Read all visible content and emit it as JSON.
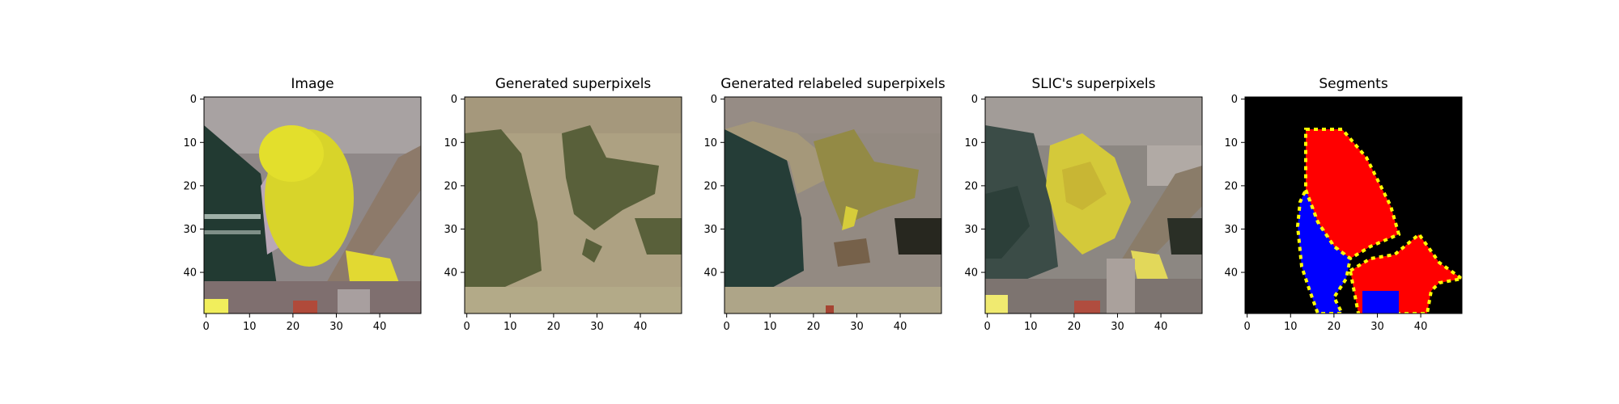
{
  "chart_data": [
    {
      "type": "image",
      "title": "Image",
      "xlim": [
        0,
        49
      ],
      "ylim": [
        0,
        49
      ],
      "x_ticks": [
        "0",
        "10",
        "20",
        "30",
        "40"
      ],
      "y_ticks": [
        "0",
        "10",
        "20",
        "30",
        "40"
      ],
      "content": "yellow parakeet perched on a branch, 50x50 pixel image"
    },
    {
      "type": "image",
      "title": "Generated superpixels",
      "xlim": [
        0,
        49
      ],
      "ylim": [
        0,
        49
      ],
      "x_ticks": [
        "0",
        "10",
        "20",
        "30",
        "40"
      ],
      "y_ticks": [
        "0",
        "10",
        "20",
        "30",
        "40"
      ],
      "content": "region map in olive and tan tones"
    },
    {
      "type": "image",
      "title": "Generated relabeled superpixels",
      "xlim": [
        0,
        49
      ],
      "ylim": [
        0,
        49
      ],
      "x_ticks": [
        "0",
        "10",
        "20",
        "30",
        "40"
      ],
      "y_ticks": [
        "0",
        "10",
        "20",
        "30",
        "40"
      ],
      "content": "region map colored with region mean colors"
    },
    {
      "type": "image",
      "title": "SLIC's superpixels",
      "xlim": [
        0,
        49
      ],
      "ylim": [
        0,
        49
      ],
      "x_ticks": [
        "0",
        "10",
        "20",
        "30",
        "40"
      ],
      "y_ticks": [
        "0",
        "10",
        "20",
        "30",
        "40"
      ],
      "content": "SLIC superpixels colored by mean color"
    },
    {
      "type": "image",
      "title": "Segments",
      "xlim": [
        0,
        49
      ],
      "ylim": [
        0,
        49
      ],
      "x_ticks": [
        "0",
        "10",
        "20",
        "30",
        "40"
      ],
      "y_ticks": [
        "0",
        "10",
        "20",
        "30",
        "40"
      ],
      "content": "black background with red and blue segments outlined in yellow"
    }
  ],
  "colors": {
    "background": "#ffffff",
    "axes_frame": "#000000",
    "segment_background": "#000000",
    "segment_red": "#ff0000",
    "segment_blue": "#0000ff",
    "segment_boundary": "#ffff00"
  }
}
